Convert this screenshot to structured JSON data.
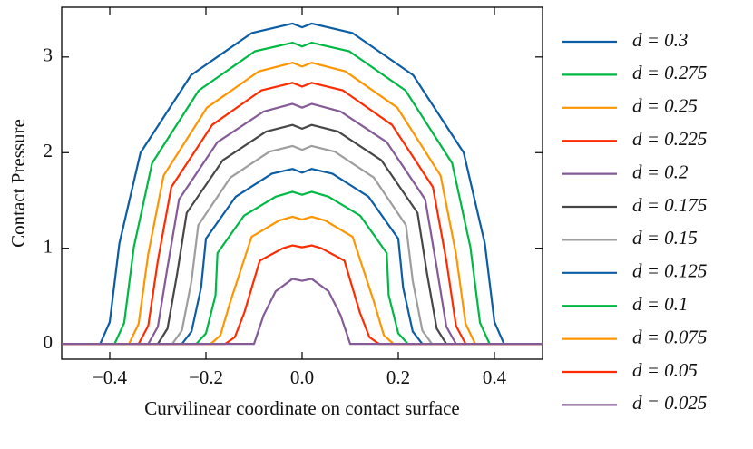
{
  "chart_data": {
    "type": "line",
    "xlabel": "Curvilinear coordinate on contact surface",
    "ylabel": "Contact Pressure",
    "xlim": [
      -0.5,
      0.5
    ],
    "xticks": [
      {
        "value": -0.4,
        "label": "−0.4"
      },
      {
        "value": -0.2,
        "label": "−0.2"
      },
      {
        "value": 0,
        "label": "0.0"
      },
      {
        "value": 0.2,
        "label": "0.2"
      },
      {
        "value": 0.4,
        "label": "0.4"
      }
    ],
    "ylim": [
      -0.16,
      3.52
    ],
    "yticks": [
      0,
      1,
      2,
      3
    ],
    "legend": "right",
    "series": [
      {
        "name": "d = 0.3",
        "color": "#0C5DA5",
        "x": [
          -0.5,
          -0.42,
          -0.4,
          -0.38,
          -0.336,
          -0.231,
          -0.105,
          -0.02,
          0,
          0.02,
          0.105,
          0.231,
          0.336,
          0.38,
          0.4,
          0.42,
          0.5
        ],
        "values": [
          0,
          0,
          0.23,
          1.05,
          2.0,
          2.81,
          3.25,
          3.35,
          3.31,
          3.35,
          3.25,
          2.81,
          2.0,
          1.05,
          0.23,
          0,
          0
        ]
      },
      {
        "name": "d = 0.275",
        "color": "#00B945",
        "x": [
          -0.5,
          -0.39,
          -0.37,
          -0.35,
          -0.312,
          -0.215,
          -0.098,
          -0.02,
          0,
          0.02,
          0.098,
          0.215,
          0.312,
          0.35,
          0.37,
          0.39,
          0.5
        ],
        "values": [
          0,
          0,
          0.22,
          1.01,
          1.89,
          2.65,
          3.06,
          3.15,
          3.11,
          3.15,
          3.06,
          2.65,
          1.89,
          1.01,
          0.22,
          0,
          0
        ]
      },
      {
        "name": "d = 0.25",
        "color": "#FF9500",
        "x": [
          -0.5,
          -0.36,
          -0.34,
          -0.32,
          -0.288,
          -0.198,
          -0.09,
          -0.02,
          0,
          0.02,
          0.09,
          0.198,
          0.288,
          0.32,
          0.34,
          0.36,
          0.5
        ],
        "values": [
          0,
          0,
          0.21,
          0.94,
          1.76,
          2.47,
          2.85,
          2.94,
          2.9,
          2.94,
          2.85,
          2.47,
          1.76,
          0.94,
          0.21,
          0,
          0
        ]
      },
      {
        "name": "d = 0.225",
        "color": "#FF2C00",
        "x": [
          -0.5,
          -0.34,
          -0.32,
          -0.3,
          -0.272,
          -0.187,
          -0.085,
          -0.02,
          0,
          0.02,
          0.085,
          0.187,
          0.272,
          0.3,
          0.32,
          0.34,
          0.5
        ],
        "values": [
          0,
          0,
          0.19,
          0.87,
          1.64,
          2.29,
          2.65,
          2.73,
          2.69,
          2.73,
          2.65,
          2.29,
          1.64,
          0.87,
          0.19,
          0,
          0
        ]
      },
      {
        "name": "d = 0.2",
        "color": "#845B97",
        "x": [
          -0.5,
          -0.32,
          -0.3,
          -0.28,
          -0.256,
          -0.176,
          -0.08,
          -0.02,
          0,
          0.02,
          0.08,
          0.176,
          0.256,
          0.28,
          0.3,
          0.32,
          0.5
        ],
        "values": [
          0,
          0,
          0.18,
          0.8,
          1.51,
          2.11,
          2.43,
          2.51,
          2.47,
          2.51,
          2.43,
          2.11,
          1.51,
          0.8,
          0.18,
          0,
          0
        ]
      },
      {
        "name": "d = 0.175",
        "color": "#474747",
        "x": [
          -0.5,
          -0.3,
          -0.28,
          -0.26,
          -0.24,
          -0.165,
          -0.075,
          -0.02,
          0,
          0.02,
          0.075,
          0.165,
          0.24,
          0.26,
          0.28,
          0.3,
          0.5
        ],
        "values": [
          0,
          0,
          0.16,
          0.73,
          1.37,
          1.92,
          2.22,
          2.29,
          2.25,
          2.29,
          2.22,
          1.92,
          1.37,
          0.73,
          0.16,
          0,
          0
        ]
      },
      {
        "name": "d = 0.15",
        "color": "#9E9E9E",
        "x": [
          -0.5,
          -0.27,
          -0.25,
          -0.23,
          -0.216,
          -0.149,
          -0.068,
          -0.02,
          0,
          0.02,
          0.068,
          0.149,
          0.216,
          0.23,
          0.25,
          0.27,
          0.5
        ],
        "values": [
          0,
          0,
          0.14,
          0.66,
          1.24,
          1.74,
          2.01,
          2.07,
          2.03,
          2.07,
          2.01,
          1.74,
          1.24,
          0.66,
          0.14,
          0,
          0
        ]
      },
      {
        "name": "d = 0.125",
        "color": "#0C5DA5",
        "x": [
          -0.5,
          -0.25,
          -0.23,
          -0.21,
          -0.2,
          -0.138,
          -0.063,
          -0.02,
          0,
          0.02,
          0.063,
          0.138,
          0.2,
          0.21,
          0.23,
          0.25,
          0.5
        ],
        "values": [
          0,
          0,
          0.13,
          0.59,
          1.1,
          1.54,
          1.78,
          1.83,
          1.79,
          1.83,
          1.78,
          1.54,
          1.1,
          0.59,
          0.13,
          0,
          0
        ]
      },
      {
        "name": "d = 0.1",
        "color": "#00B945",
        "x": [
          -0.5,
          -0.22,
          -0.2,
          -0.18,
          -0.176,
          -0.121,
          -0.055,
          -0.02,
          0,
          0.02,
          0.055,
          0.121,
          0.176,
          0.18,
          0.2,
          0.22,
          0.5
        ],
        "values": [
          0,
          0,
          0.11,
          0.51,
          0.95,
          1.34,
          1.54,
          1.59,
          1.56,
          1.59,
          1.54,
          1.34,
          0.95,
          0.51,
          0.11,
          0,
          0
        ]
      },
      {
        "name": "d = 0.075",
        "color": "#FF9500",
        "x": [
          -0.5,
          -0.19,
          -0.17,
          -0.15,
          -0.105,
          -0.048,
          -0.02,
          0,
          0.02,
          0.048,
          0.105,
          0.15,
          0.17,
          0.19,
          0.5
        ],
        "values": [
          0,
          0,
          0.09,
          0.43,
          1.12,
          1.29,
          1.33,
          1.3,
          1.33,
          1.29,
          1.12,
          0.43,
          0.09,
          0,
          0
        ]
      },
      {
        "name": "d = 0.05",
        "color": "#FF2C00",
        "x": [
          -0.5,
          -0.16,
          -0.14,
          -0.12,
          -0.088,
          -0.04,
          -0.02,
          0,
          0.02,
          0.04,
          0.088,
          0.12,
          0.14,
          0.16,
          0.5
        ],
        "values": [
          0,
          0,
          0.07,
          0.33,
          0.87,
          1.0,
          1.03,
          1.01,
          1.03,
          1.0,
          0.87,
          0.33,
          0.07,
          0,
          0
        ]
      },
      {
        "name": "d = 0.025",
        "color": "#845B97",
        "x": [
          -0.5,
          -0.1,
          -0.08,
          -0.055,
          -0.02,
          0,
          0.02,
          0.055,
          0.08,
          0.1,
          0.5
        ],
        "values": [
          0,
          0,
          0.3,
          0.55,
          0.68,
          0.66,
          0.68,
          0.55,
          0.3,
          0,
          0
        ]
      }
    ]
  }
}
